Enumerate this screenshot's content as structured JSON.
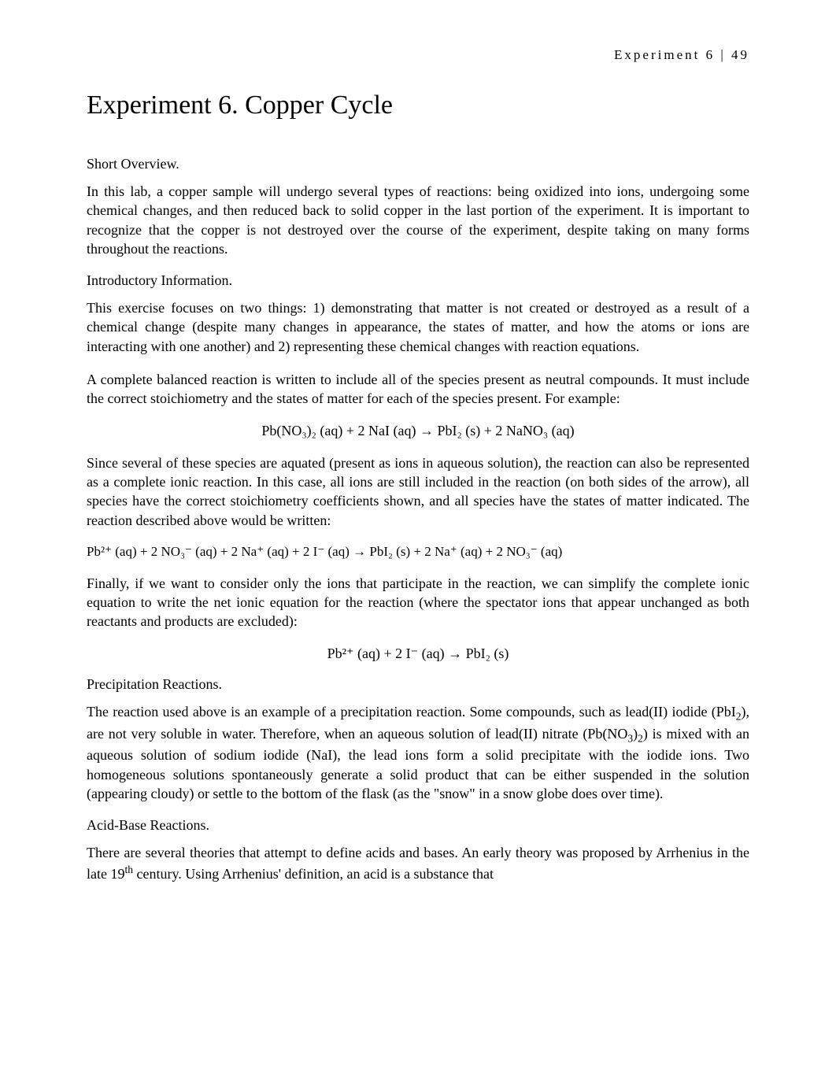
{
  "running_head": "Experiment 6  | 49",
  "title": "Experiment 6. Copper Cycle",
  "sec1_head": "Short Overview.",
  "sec1_p1": "In this lab, a copper sample will undergo several types of reactions: being oxidized into ions, undergoing some chemical changes, and then reduced back to solid copper in the last portion of the experiment. It is important to recognize that the copper is not destroyed over the course of the experiment, despite taking on many forms throughout the reactions.",
  "sec2_head": "Introductory Information.",
  "sec2_p1": "This exercise focuses on two things: 1) demonstrating that matter is not created or destroyed as a result of a chemical change (despite many changes in appearance, the states of matter, and how the atoms or ions are interacting with one another) and 2) representing these chemical changes with reaction equations.",
  "sec2_p2_a": "A ",
  "sec2_p2_b": "complete balanced reaction",
  "sec2_p2_c": " is written to include all of the species present as neutral compounds. It must include the correct stoichiometry and the states of matter for each of the species present. For example:",
  "eq1": "Pb(NO₃)₂ (aq) + 2 NaI (aq) → PbI₂ (s) + 2 NaNO₃ (aq)",
  "sec2_p3_a": "Since several of these species are aquated (present as ions in aqueous solution), the reaction can also be represented as a ",
  "sec2_p3_b": "complete ionic reaction",
  "sec2_p3_c": ". In this case, all ions are still included in the reaction (on both sides of the arrow), all species have the correct stoichiometry coefficients shown, and all species have the states of matter indicated. The reaction described above would be written:",
  "eq2": "Pb²⁺ (aq) + 2 NO₃⁻ (aq) + 2 Na⁺ (aq) + 2 I⁻ (aq) → PbI₂ (s) + 2 Na⁺ (aq) + 2 NO₃⁻ (aq)",
  "sec2_p4_a": "Finally, if we want to consider only the ions that participate in the reaction, we can simplify the complete ionic equation to write the ",
  "sec2_p4_b": "net ionic equation",
  "sec2_p4_c": " for the reaction (where the spectator ions that appear unchanged as both reactants and products are excluded):",
  "eq3": "Pb²⁺ (aq) + 2 I⁻ (aq) → PbI₂ (s)",
  "sec3_head": "Precipitation Reactions.",
  "sec3_p1_a": "The reaction used above is an example of a precipitation reaction. Some compounds, such as lead(II) iodide (PbI",
  "sec3_p1_b": "2",
  "sec3_p1_c": "), are not very soluble in water. Therefore, when an aqueous solution of lead(II) nitrate (Pb(NO",
  "sec3_p1_d": "3",
  "sec3_p1_e": ")",
  "sec3_p1_f": "2",
  "sec3_p1_g": ") is mixed with an aqueous solution of sodium iodide (NaI), the lead ions form a solid precipitate with the iodide ions. Two homogeneous solutions spontaneously generate a solid product that can be either suspended in the solution (appearing cloudy) or settle to the bottom of the flask (as the \"snow\" in a snow globe does over time).",
  "sec4_head": "Acid-Base Reactions.",
  "sec4_p1_a": "There are several theories that attempt to define acids and bases. An early theory was proposed by Arrhenius in the late 19",
  "sec4_p1_b": "th",
  "sec4_p1_c": " century. Using Arrhenius' definition, an acid is a substance that"
}
